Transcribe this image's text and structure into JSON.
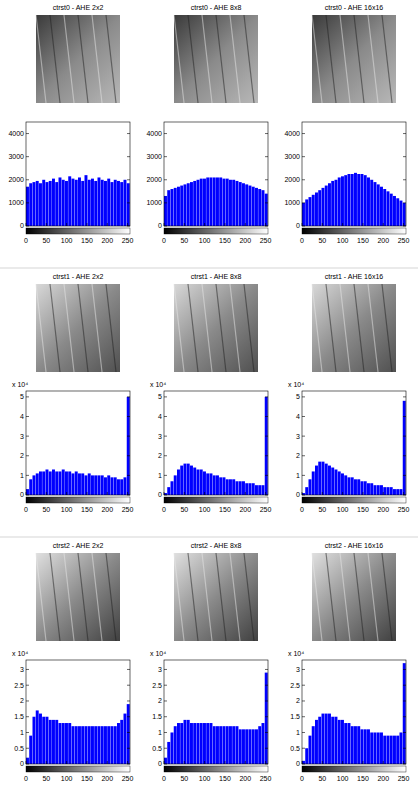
{
  "chart_data": [
    {
      "type": "histogram",
      "title": "ctrst0 - AHE 2x2",
      "color": "#0000ff",
      "bins": [
        0,
        8,
        16,
        24,
        32,
        40,
        48,
        56,
        64,
        72,
        80,
        88,
        96,
        104,
        112,
        120,
        128,
        136,
        144,
        152,
        160,
        168,
        176,
        184,
        192,
        200,
        208,
        216,
        224,
        232,
        240,
        248,
        256
      ],
      "values": [
        1700,
        1850,
        1900,
        1950,
        1850,
        2000,
        1900,
        1950,
        2050,
        1900,
        2100,
        2000,
        1950,
        2150,
        2050,
        2000,
        2100,
        1950,
        2200,
        2000,
        2050,
        1950,
        2100,
        2000,
        1950,
        2050,
        1900,
        2000,
        1950,
        1900,
        2000,
        1850
      ],
      "xlim": [
        0,
        256
      ],
      "xticks": [
        0,
        50,
        100,
        150,
        200,
        250
      ],
      "ylim": [
        0,
        4500
      ],
      "yticks": [
        0,
        1000,
        2000,
        3000,
        4000
      ]
    },
    {
      "type": "histogram",
      "title": "ctrst0 - AHE 8x8",
      "color": "#0000ff",
      "bins": [
        0,
        8,
        16,
        24,
        32,
        40,
        48,
        56,
        64,
        72,
        80,
        88,
        96,
        104,
        112,
        120,
        128,
        136,
        144,
        152,
        160,
        168,
        176,
        184,
        192,
        200,
        208,
        216,
        224,
        232,
        240,
        248,
        256
      ],
      "values": [
        1300,
        1550,
        1600,
        1650,
        1700,
        1750,
        1800,
        1850,
        1900,
        1950,
        2000,
        2050,
        2050,
        2100,
        2100,
        2100,
        2100,
        2100,
        2050,
        2050,
        2000,
        2000,
        1950,
        1900,
        1850,
        1800,
        1750,
        1700,
        1650,
        1600,
        1550,
        1400
      ],
      "xlim": [
        0,
        256
      ],
      "xticks": [
        0,
        50,
        100,
        150,
        200,
        250
      ],
      "ylim": [
        0,
        4500
      ],
      "yticks": [
        0,
        1000,
        2000,
        3000,
        4000
      ]
    },
    {
      "type": "histogram",
      "title": "ctrst0 - AHE 16x16",
      "color": "#0000ff",
      "bins": [
        0,
        8,
        16,
        24,
        32,
        40,
        48,
        56,
        64,
        72,
        80,
        88,
        96,
        104,
        112,
        120,
        128,
        136,
        144,
        152,
        160,
        168,
        176,
        184,
        192,
        200,
        208,
        216,
        224,
        232,
        240,
        248,
        256
      ],
      "values": [
        1000,
        1150,
        1250,
        1350,
        1450,
        1550,
        1650,
        1750,
        1850,
        1950,
        2000,
        2100,
        2150,
        2200,
        2250,
        2250,
        2300,
        2250,
        2250,
        2200,
        2100,
        2000,
        1900,
        1800,
        1700,
        1600,
        1500,
        1400,
        1300,
        1200,
        1100,
        1000
      ],
      "xlim": [
        0,
        256
      ],
      "xticks": [
        0,
        50,
        100,
        150,
        200,
        250
      ],
      "ylim": [
        0,
        4500
      ],
      "yticks": [
        0,
        1000,
        2000,
        3000,
        4000
      ]
    },
    {
      "type": "histogram",
      "title": "ctrst1 - AHE 2x2",
      "color": "#0000ff",
      "annotations": [
        "x 10⁴"
      ],
      "bins": [
        0,
        8,
        16,
        24,
        32,
        40,
        48,
        56,
        64,
        72,
        80,
        88,
        96,
        104,
        112,
        120,
        128,
        136,
        144,
        152,
        160,
        168,
        176,
        184,
        192,
        200,
        208,
        216,
        224,
        232,
        240,
        248,
        256
      ],
      "values": [
        0.3,
        0.8,
        1.0,
        1.1,
        1.2,
        1.2,
        1.3,
        1.2,
        1.3,
        1.2,
        1.2,
        1.3,
        1.2,
        1.2,
        1.1,
        1.2,
        1.1,
        1.1,
        1.0,
        1.1,
        1.0,
        1.0,
        1.0,
        1.0,
        0.9,
        1.0,
        0.9,
        0.9,
        0.8,
        0.8,
        0.9,
        5.0
      ],
      "xlim": [
        0,
        256
      ],
      "xticks": [
        0,
        50,
        100,
        150,
        200,
        250
      ],
      "ylim": [
        0,
        5.3
      ],
      "yticks": [
        0,
        1,
        2,
        3,
        4,
        5
      ]
    },
    {
      "type": "histogram",
      "title": "ctrst1 - AHE 8x8",
      "color": "#0000ff",
      "annotations": [
        "x 10⁴"
      ],
      "bins": [
        0,
        8,
        16,
        24,
        32,
        40,
        48,
        56,
        64,
        72,
        80,
        88,
        96,
        104,
        112,
        120,
        128,
        136,
        144,
        152,
        160,
        168,
        176,
        184,
        192,
        200,
        208,
        216,
        224,
        232,
        240,
        248,
        256
      ],
      "values": [
        0.1,
        0.4,
        0.7,
        1.0,
        1.3,
        1.5,
        1.6,
        1.6,
        1.5,
        1.4,
        1.3,
        1.3,
        1.2,
        1.1,
        1.1,
        1.0,
        1.0,
        0.9,
        0.9,
        0.8,
        0.8,
        0.8,
        0.7,
        0.7,
        0.7,
        0.6,
        0.6,
        0.6,
        0.5,
        0.5,
        0.5,
        5.0
      ],
      "xlim": [
        0,
        256
      ],
      "xticks": [
        0,
        50,
        100,
        150,
        200,
        250
      ],
      "ylim": [
        0,
        5.3
      ],
      "yticks": [
        0,
        1,
        2,
        3,
        4,
        5
      ]
    },
    {
      "type": "histogram",
      "title": "ctrst1 - AHE 16x16",
      "color": "#0000ff",
      "annotations": [
        "x 10⁴"
      ],
      "bins": [
        0,
        8,
        16,
        24,
        32,
        40,
        48,
        56,
        64,
        72,
        80,
        88,
        96,
        104,
        112,
        120,
        128,
        136,
        144,
        152,
        160,
        168,
        176,
        184,
        192,
        200,
        208,
        216,
        224,
        232,
        240,
        248,
        256
      ],
      "values": [
        0.1,
        0.4,
        0.8,
        1.2,
        1.5,
        1.7,
        1.7,
        1.6,
        1.5,
        1.4,
        1.3,
        1.2,
        1.1,
        1.0,
        0.9,
        0.9,
        0.8,
        0.8,
        0.7,
        0.7,
        0.6,
        0.6,
        0.5,
        0.5,
        0.5,
        0.4,
        0.4,
        0.4,
        0.3,
        0.3,
        0.3,
        4.8
      ],
      "xlim": [
        0,
        256
      ],
      "xticks": [
        0,
        50,
        100,
        150,
        200,
        250
      ],
      "ylim": [
        0,
        5.3
      ],
      "yticks": [
        0,
        1,
        2,
        3,
        4,
        5
      ]
    },
    {
      "type": "histogram",
      "title": "ctrst2 - AHE 2x2",
      "color": "#0000ff",
      "annotations": [
        "x 10⁴"
      ],
      "bins": [
        0,
        8,
        16,
        24,
        32,
        40,
        48,
        56,
        64,
        72,
        80,
        88,
        96,
        104,
        112,
        120,
        128,
        136,
        144,
        152,
        160,
        168,
        176,
        184,
        192,
        200,
        208,
        216,
        224,
        232,
        240,
        248,
        256
      ],
      "values": [
        0.2,
        0.9,
        1.5,
        1.7,
        1.6,
        1.5,
        1.5,
        1.4,
        1.4,
        1.4,
        1.3,
        1.3,
        1.3,
        1.3,
        1.2,
        1.2,
        1.2,
        1.2,
        1.2,
        1.2,
        1.2,
        1.2,
        1.2,
        1.2,
        1.2,
        1.2,
        1.2,
        1.2,
        1.3,
        1.4,
        1.6,
        1.9
      ],
      "xlim": [
        0,
        256
      ],
      "xticks": [
        0,
        50,
        100,
        150,
        200,
        250
      ],
      "ylim": [
        0,
        3.3
      ],
      "yticks": [
        0,
        0.5,
        1,
        1.5,
        2,
        2.5,
        3
      ]
    },
    {
      "type": "histogram",
      "title": "ctrst2 - AHE 8x8",
      "color": "#0000ff",
      "annotations": [
        "x 10⁴"
      ],
      "bins": [
        0,
        8,
        16,
        24,
        32,
        40,
        48,
        56,
        64,
        72,
        80,
        88,
        96,
        104,
        112,
        120,
        128,
        136,
        144,
        152,
        160,
        168,
        176,
        184,
        192,
        200,
        208,
        216,
        224,
        232,
        240,
        248,
        256
      ],
      "values": [
        0.2,
        0.7,
        1.0,
        1.2,
        1.3,
        1.3,
        1.4,
        1.4,
        1.3,
        1.3,
        1.3,
        1.3,
        1.3,
        1.3,
        1.3,
        1.2,
        1.2,
        1.2,
        1.2,
        1.2,
        1.2,
        1.2,
        1.2,
        1.1,
        1.1,
        1.1,
        1.1,
        1.1,
        1.1,
        1.2,
        1.3,
        2.9
      ],
      "xlim": [
        0,
        256
      ],
      "xticks": [
        0,
        50,
        100,
        150,
        200,
        250
      ],
      "ylim": [
        0,
        3.3
      ],
      "yticks": [
        0,
        0.5,
        1,
        1.5,
        2,
        2.5,
        3
      ]
    },
    {
      "type": "histogram",
      "title": "ctrst2 - AHE 16x16",
      "color": "#0000ff",
      "annotations": [
        "x 10⁴"
      ],
      "bins": [
        0,
        8,
        16,
        24,
        32,
        40,
        48,
        56,
        64,
        72,
        80,
        88,
        96,
        104,
        112,
        120,
        128,
        136,
        144,
        152,
        160,
        168,
        176,
        184,
        192,
        200,
        208,
        216,
        224,
        232,
        240,
        248,
        256
      ],
      "values": [
        0.1,
        0.5,
        0.9,
        1.2,
        1.4,
        1.5,
        1.6,
        1.6,
        1.6,
        1.5,
        1.5,
        1.4,
        1.4,
        1.3,
        1.3,
        1.2,
        1.2,
        1.2,
        1.1,
        1.1,
        1.1,
        1.0,
        1.0,
        1.0,
        1.0,
        0.9,
        0.9,
        0.9,
        0.9,
        0.9,
        1.0,
        3.2
      ],
      "xlim": [
        0,
        256
      ],
      "xticks": [
        0,
        50,
        100,
        150,
        200,
        250
      ],
      "ylim": [
        0,
        3.3
      ],
      "yticks": [
        0,
        0.5,
        1,
        1.5,
        2,
        2.5,
        3
      ]
    }
  ]
}
